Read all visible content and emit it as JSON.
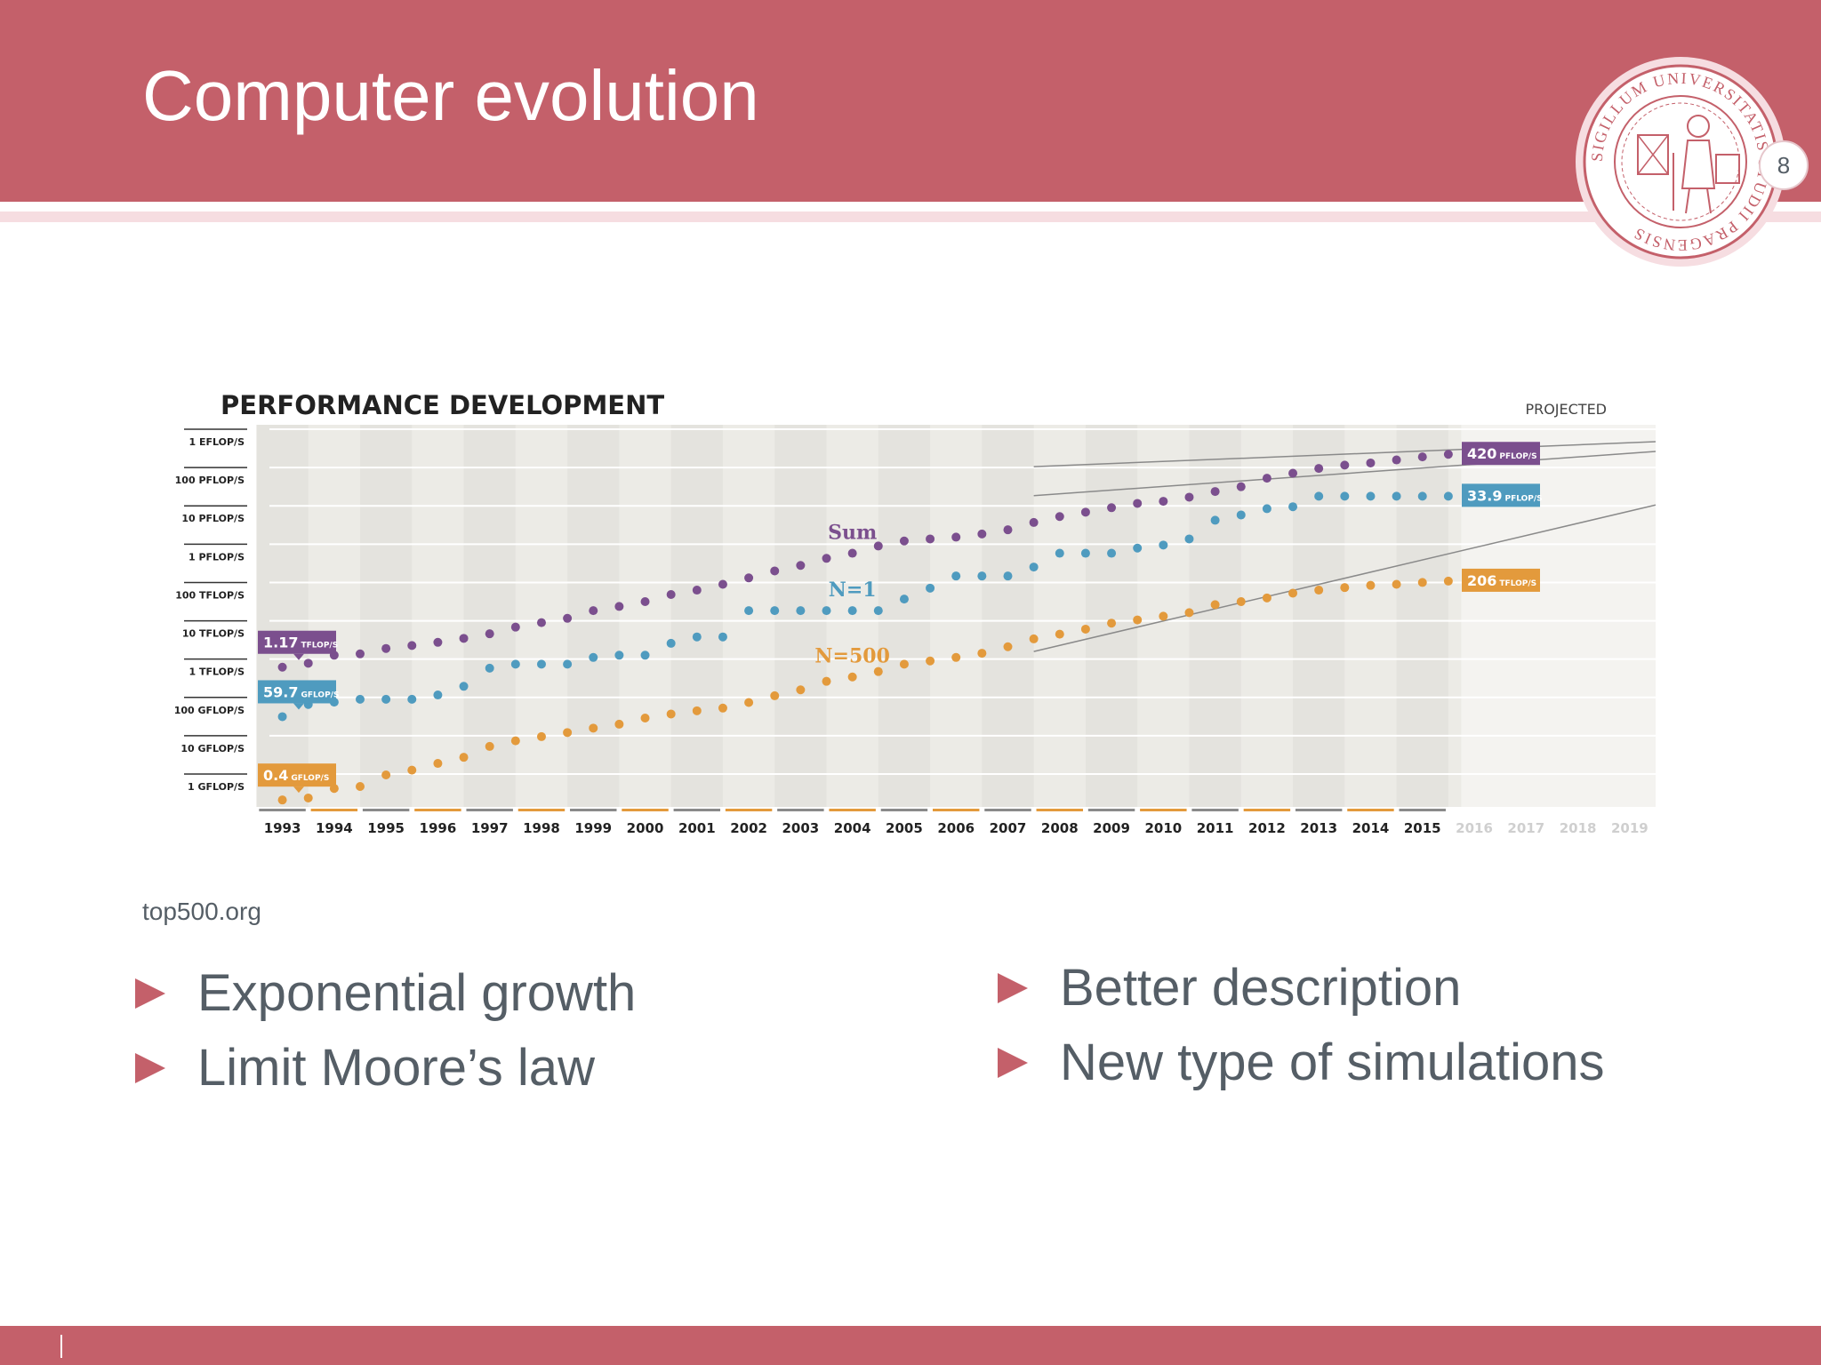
{
  "slide": {
    "title": "Computer evolution",
    "page_number": "8",
    "source": "top500.org",
    "bullets_left": [
      "Exponential growth",
      "Limit Moore’s law"
    ],
    "bullets_right": [
      "Better description",
      "New type of simulations"
    ],
    "seal_icon": "university-seal-icon",
    "bullet_icon": "triangle-bullet-icon",
    "seal_text": "SIGILLUM UNIVERSITATIS STUDII PRAGENSIS"
  },
  "colors": {
    "accent": "#c4606a",
    "text": "#555e66",
    "sum": "#7b4f8e",
    "n1": "#4f9bbf",
    "n500": "#e39a3c"
  },
  "chart_data": {
    "type": "scatter",
    "title": "PERFORMANCE DEVELOPMENT",
    "projected_label": "PROJECTED",
    "y_scale": "log",
    "ylim": [
      0.5,
      1000000000
    ],
    "xlim": [
      1992.75,
      2019.5
    ],
    "y_ticks": [
      {
        "value": 1,
        "label": "1 GFLOP/S"
      },
      {
        "value": 10,
        "label": "10 GFLOP/S"
      },
      {
        "value": 100,
        "label": "100 GFLOP/S"
      },
      {
        "value": 1000,
        "label": "1 TFLOP/S"
      },
      {
        "value": 10000,
        "label": "10 TFLOP/S"
      },
      {
        "value": 100000,
        "label": "100 TFLOP/S"
      },
      {
        "value": 1000000,
        "label": "1 PFLOP/S"
      },
      {
        "value": 10000000,
        "label": "10 PFLOP/S"
      },
      {
        "value": 100000000,
        "label": "100 PFLOP/S"
      },
      {
        "value": 1000000000,
        "label": "1 EFLOP/S"
      }
    ],
    "categories": [
      "1993",
      "1994",
      "1995",
      "1996",
      "1997",
      "1998",
      "1999",
      "2000",
      "2001",
      "2002",
      "2003",
      "2004",
      "2005",
      "2006",
      "2007",
      "2008",
      "2009",
      "2010",
      "2011",
      "2012",
      "2013",
      "2014",
      "2015",
      "2016",
      "2017",
      "2018",
      "2019"
    ],
    "projected_years": [
      "2016",
      "2017",
      "2018",
      "2019"
    ],
    "x": [
      1993,
      1993.5,
      1994,
      1994.5,
      1995,
      1995.5,
      1996,
      1996.5,
      1997,
      1997.5,
      1998,
      1998.5,
      1999,
      1999.5,
      2000,
      2000.5,
      2001,
      2001.5,
      2002,
      2002.5,
      2003,
      2003.5,
      2004,
      2004.5,
      2005,
      2005.5,
      2006,
      2006.5,
      2007,
      2007.5,
      2008,
      2008.5,
      2009,
      2009.5,
      2010,
      2010.5,
      2011,
      2011.5,
      2012,
      2012.5,
      2013,
      2013.5,
      2014,
      2014.5,
      2015,
      2015.5
    ],
    "series": [
      {
        "name": "Sum",
        "key": "sum",
        "values": [
          1170,
          1480,
          2400,
          2600,
          3600,
          4300,
          5200,
          6600,
          8700,
          13000,
          17000,
          22000,
          35000,
          45000,
          60000,
          92000,
          120000,
          170000,
          250000,
          380000,
          530000,
          810000,
          1100000,
          1700000,
          2300000,
          2600000,
          2900000,
          3500000,
          4500000,
          7000000,
          10000000,
          13000000,
          17000000,
          22000000,
          25000000,
          32000000,
          45000000,
          60000000,
          100000000,
          135000000,
          180000000,
          220000000,
          250000000,
          300000000,
          360000000,
          420000000
        ]
      },
      {
        "name": "N=1",
        "key": "n1",
        "values": [
          59.7,
          124,
          143,
          170,
          170,
          170,
          220,
          370,
          1100,
          1400,
          1400,
          1400,
          2100,
          2400,
          2400,
          4900,
          7200,
          7200,
          35000,
          35000,
          35000,
          35000,
          35000,
          35000,
          70000,
          135000,
          280000,
          280000,
          280000,
          480000,
          1100000,
          1100000,
          1100000,
          1500000,
          1800000,
          2600000,
          8000000,
          11000000,
          16000000,
          18000000,
          33900000,
          33900000,
          33900000,
          33900000,
          33900000,
          33900000
        ]
      },
      {
        "name": "N=500",
        "key": "n500",
        "values": [
          0.4,
          0.45,
          0.8,
          0.9,
          1.8,
          2.4,
          3.6,
          5.2,
          10,
          14,
          18,
          23,
          30,
          38,
          55,
          70,
          85,
          100,
          140,
          210,
          300,
          500,
          650,
          900,
          1400,
          1700,
          2100,
          2700,
          4000,
          6400,
          8500,
          11500,
          16500,
          20000,
          25000,
          31000,
          50000,
          60000,
          75000,
          100000,
          120000,
          140000,
          160000,
          170000,
          190000,
          206000
        ]
      }
    ],
    "start_labels": [
      {
        "series": "sum",
        "value": "1.17",
        "unit": "TFLOP/S"
      },
      {
        "series": "n1",
        "value": "59.7",
        "unit": "GFLOP/S"
      },
      {
        "series": "n500",
        "value": "0.4",
        "unit": "GFLOP/S"
      }
    ],
    "end_labels": [
      {
        "series": "sum",
        "value": "420",
        "unit": "PFLOP/S"
      },
      {
        "series": "n1",
        "value": "33.9",
        "unit": "PFLOP/S"
      },
      {
        "series": "n500",
        "value": "206",
        "unit": "TFLOP/S"
      }
    ],
    "series_labels": [
      {
        "series": "sum",
        "text": "Sum"
      },
      {
        "series": "n1",
        "text": "N=1"
      },
      {
        "series": "n500",
        "text": "N=500"
      }
    ],
    "trend_lines": [
      {
        "from": [
          2007.5,
          200000000
        ],
        "to": [
          2019.5,
          900000000
        ]
      },
      {
        "from": [
          2007.5,
          35000000
        ],
        "to": [
          2019.5,
          500000000
        ]
      },
      {
        "from": [
          2007.5,
          3000
        ],
        "to": [
          2019.5,
          20000000
        ]
      }
    ]
  }
}
